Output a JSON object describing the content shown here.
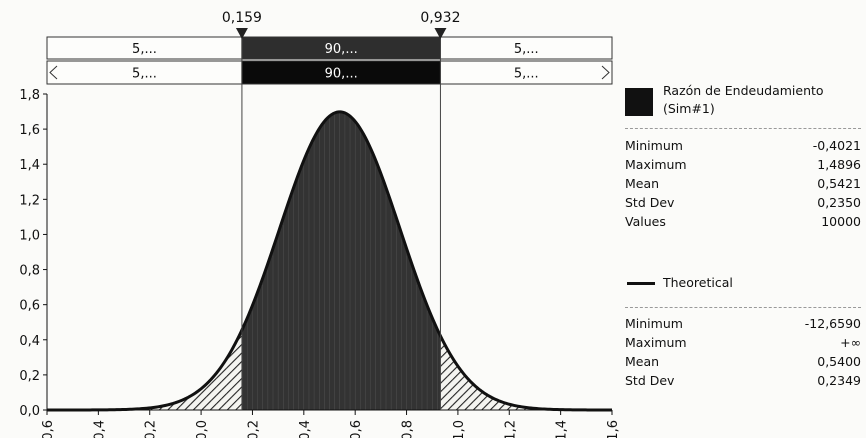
{
  "chart_data": {
    "type": "area",
    "x_ticks": [
      "-0,6",
      "-0,4",
      "-0,2",
      "0,0",
      "0,2",
      "0,4",
      "0,6",
      "0,8",
      "1,0",
      "1,2",
      "1,4",
      "1,6"
    ],
    "y_ticks": [
      "0,0",
      "0,2",
      "0,4",
      "0,6",
      "0,8",
      "1,0",
      "1,2",
      "1,4",
      "1,6",
      "1,8"
    ],
    "xlim": [
      -0.6,
      1.6
    ],
    "ylim": [
      0,
      1.8
    ],
    "grid": false,
    "legend_position": "right",
    "markers": [
      {
        "x": 0.159,
        "label": "0,159"
      },
      {
        "x": 0.932,
        "label": "0,932"
      }
    ],
    "probability_bars": [
      {
        "left": "5,...",
        "middle": "90,...",
        "right": "5,..."
      },
      {
        "left": "5,...",
        "middle": "90,...",
        "right": "5,..."
      }
    ],
    "series": [
      {
        "name": "Razón de Endeudamiento (Sim#1)",
        "kind": "histogram",
        "stats": {
          "Minimum": "-0,4021",
          "Maximum": "1,4896",
          "Mean": "0,5421",
          "Std Dev": "0,2350",
          "Values": "10000"
        }
      },
      {
        "name": "Theoretical",
        "kind": "line",
        "mean": 0.54,
        "std": 0.2349,
        "stats": {
          "Minimum": "-12,6590",
          "Maximum": "+∞",
          "Mean": "0,5400",
          "Std Dev": "0,2349"
        }
      }
    ]
  },
  "legend": {
    "sim_name_line1": "Razón de Endeudamiento",
    "sim_name_line2": "(Sim#1)",
    "sim_stats": [
      {
        "label": "Minimum",
        "value": "-0,4021"
      },
      {
        "label": "Maximum",
        "value": "1,4896"
      },
      {
        "label": "Mean",
        "value": "0,5421"
      },
      {
        "label": "Std Dev",
        "value": "0,2350"
      },
      {
        "label": "Values",
        "value": "10000"
      }
    ],
    "theo_name": "Theoretical",
    "theo_stats": [
      {
        "label": "Minimum",
        "value": "-12,6590"
      },
      {
        "label": "Maximum",
        "value": "+∞"
      },
      {
        "label": "Mean",
        "value": "0,5400"
      },
      {
        "label": "Std Dev",
        "value": "0,2349"
      }
    ]
  },
  "colors": {
    "histogram_center": "#333333",
    "bar_middle": "#2e2e2e",
    "bar_middle_dark": "#0a0a0a",
    "background": "#fbfbf9",
    "line": "#111111"
  }
}
